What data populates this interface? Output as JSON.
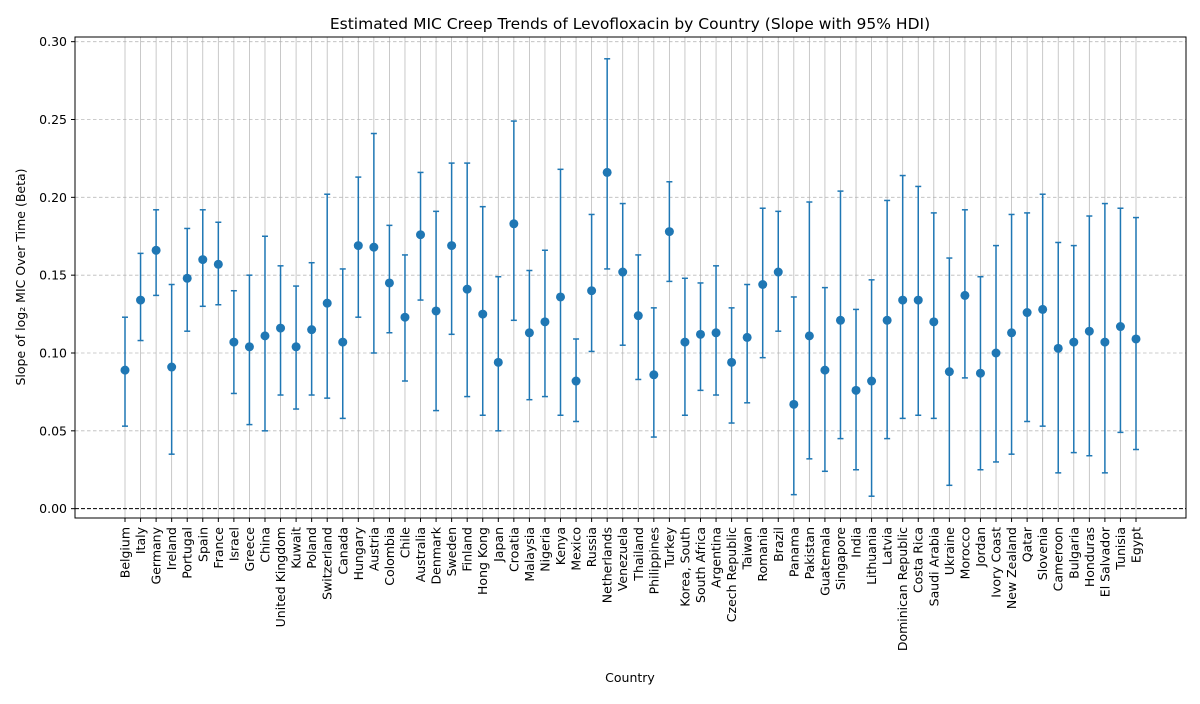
{
  "chart_data": {
    "type": "scatter",
    "title": "Estimated MIC Creep Trends of Levofloxacin by Country (Slope with 95% HDI)",
    "xlabel": "Country",
    "ylabel": "Slope of log₂ MIC Over Time (Beta)",
    "ylim": [
      -0.006,
      0.303
    ],
    "yticks": [
      0.0,
      0.05,
      0.1,
      0.15,
      0.2,
      0.25,
      0.3
    ],
    "ytick_labels": [
      "0.00",
      "0.05",
      "0.10",
      "0.15",
      "0.20",
      "0.25",
      "0.30"
    ],
    "grid": true,
    "reference_line": 0.0,
    "marker_color": "#1f77b4",
    "countries": [
      "Belgium",
      "Italy",
      "Germany",
      "Ireland",
      "Portugal",
      "Spain",
      "France",
      "Israel",
      "Greece",
      "China",
      "United Kingdom",
      "Kuwait",
      "Poland",
      "Switzerland",
      "Canada",
      "Hungary",
      "Austria",
      "Colombia",
      "Chile",
      "Australia",
      "Denmark",
      "Sweden",
      "Finland",
      "Hong Kong",
      "Japan",
      "Croatia",
      "Malaysia",
      "Nigeria",
      "Kenya",
      "Mexico",
      "Russia",
      "Netherlands",
      "Venezuela",
      "Thailand",
      "Philippines",
      "Turkey",
      "Korea, South",
      "South Africa",
      "Argentina",
      "Czech Republic",
      "Taiwan",
      "Romania",
      "Brazil",
      "Panama",
      "Pakistan",
      "Guatemala",
      "Singapore",
      "India",
      "Lithuania",
      "Latvia",
      "Dominican Republic",
      "Costa Rica",
      "Saudi Arabia",
      "Ukraine",
      "Morocco",
      "Jordan",
      "Ivory Coast",
      "New Zealand",
      "Qatar",
      "Slovenia",
      "Cameroon",
      "Bulgaria",
      "Honduras",
      "El Salvador",
      "Tunisia",
      "Egypt"
    ],
    "slope": [
      0.089,
      0.134,
      0.166,
      0.091,
      0.148,
      0.16,
      0.157,
      0.107,
      0.104,
      0.111,
      0.116,
      0.104,
      0.115,
      0.132,
      0.107,
      0.169,
      0.168,
      0.145,
      0.123,
      0.176,
      0.127,
      0.169,
      0.141,
      0.125,
      0.094,
      0.183,
      0.113,
      0.12,
      0.136,
      0.082,
      0.14,
      0.216,
      0.152,
      0.124,
      0.086,
      0.178,
      0.107,
      0.112,
      0.113,
      0.094,
      0.11,
      0.144,
      0.152,
      0.067,
      0.111,
      0.089,
      0.121,
      0.076,
      0.082,
      0.121,
      0.134,
      0.134,
      0.12,
      0.088,
      0.137,
      0.087,
      0.1,
      0.113,
      0.126,
      0.128,
      0.103,
      0.107,
      0.114,
      0.107,
      0.117,
      0.109
    ],
    "hdi_lower": [
      0.053,
      0.108,
      0.137,
      0.035,
      0.114,
      0.13,
      0.131,
      0.074,
      0.054,
      0.05,
      0.073,
      0.064,
      0.073,
      0.071,
      0.058,
      0.123,
      0.1,
      0.113,
      0.082,
      0.134,
      0.063,
      0.112,
      0.072,
      0.06,
      0.05,
      0.121,
      0.07,
      0.072,
      0.06,
      0.056,
      0.101,
      0.154,
      0.105,
      0.083,
      0.046,
      0.146,
      0.06,
      0.076,
      0.073,
      0.055,
      0.068,
      0.097,
      0.114,
      0.009,
      0.032,
      0.024,
      0.045,
      0.025,
      0.008,
      0.045,
      0.058,
      0.06,
      0.058,
      0.015,
      0.084,
      0.025,
      0.03,
      0.035,
      0.056,
      0.053,
      0.023,
      0.036,
      0.034,
      0.023,
      0.049,
      0.038
    ],
    "hdi_upper": [
      0.123,
      0.164,
      0.192,
      0.144,
      0.18,
      0.192,
      0.184,
      0.14,
      0.15,
      0.175,
      0.156,
      0.143,
      0.158,
      0.202,
      0.154,
      0.213,
      0.241,
      0.182,
      0.163,
      0.216,
      0.191,
      0.222,
      0.222,
      0.194,
      0.149,
      0.249,
      0.153,
      0.166,
      0.218,
      0.109,
      0.189,
      0.289,
      0.196,
      0.163,
      0.129,
      0.21,
      0.148,
      0.145,
      0.156,
      0.129,
      0.144,
      0.193,
      0.191,
      0.136,
      0.197,
      0.142,
      0.204,
      0.128,
      0.147,
      0.198,
      0.214,
      0.207,
      0.19,
      0.161,
      0.192,
      0.149,
      0.169,
      0.189,
      0.19,
      0.202,
      0.171,
      0.169,
      0.188,
      0.196,
      0.193,
      0.187
    ]
  }
}
